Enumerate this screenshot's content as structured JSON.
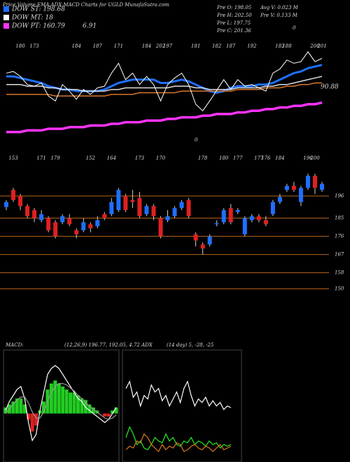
{
  "header": {
    "title": "Price,Volume,EMA,ADX,MACD Charts for UGLD MunafaSutra.com",
    "legend": [
      {
        "label": "DOW ST: 198.68",
        "color": "#1f6fff"
      },
      {
        "label": "DOW MT: 18",
        "color": "#ffffff"
      },
      {
        "label": "DOW PT: 160.79",
        "color": "#ff33ff"
      }
    ],
    "extra": "6.91",
    "info": [
      "Pre O: 198.05",
      "Pre H: 202.50",
      "Pre L: 197.75",
      "Pre C: 201.36",
      "Avg V: 0.023 M",
      "Pre V: 0.133 M"
    ],
    "zero": "0",
    "macd_title": "MACD:",
    "macd_params": "(12,26,9) 196.77, 192.05, 4.72 ADX",
    "adx_params": "(14 day) 5, -28, -25"
  },
  "chart_data": [
    {
      "type": "line",
      "ylim": [
        150,
        212
      ],
      "end_label": "90.88",
      "point_labels": [
        null,
        null,
        "180",
        null,
        "173",
        null,
        null,
        null,
        null,
        null,
        "184",
        null,
        null,
        "187",
        null,
        null,
        "171",
        null,
        null,
        null,
        "184",
        null,
        "202",
        "197",
        null,
        null,
        null,
        "181",
        null,
        null,
        "182",
        null,
        "187",
        null,
        null,
        "192",
        null,
        null,
        null,
        "182",
        "188",
        null,
        null,
        null,
        "200",
        "201"
      ],
      "series": [
        {
          "name": "DOW ST: 198.68",
          "color": "#1f6fff",
          "width": 3,
          "values": [
            191,
            191,
            190,
            189,
            188,
            187,
            185,
            184,
            183,
            183,
            182,
            182,
            182,
            182,
            183,
            185,
            187,
            188,
            189,
            189,
            189,
            189,
            187,
            187,
            188,
            189,
            188,
            186,
            184,
            182,
            181,
            182,
            184,
            185,
            185,
            185,
            186,
            186,
            187,
            189,
            191,
            193,
            194,
            196,
            197,
            198
          ]
        },
        {
          "name": "DOW MT: 18",
          "color": "#dddddd",
          "width": 1.5,
          "values": [
            186,
            186,
            186,
            185,
            185,
            185,
            184,
            184,
            183,
            183,
            183,
            182,
            182,
            182,
            182,
            183,
            183,
            184,
            184,
            184,
            184,
            184,
            184,
            184,
            185,
            185,
            185,
            184,
            184,
            183,
            183,
            183,
            183,
            184,
            184,
            184,
            184,
            185,
            185,
            186,
            186,
            187,
            188,
            189,
            190,
            191
          ]
        },
        {
          "color": "#d9772b",
          "width": 1.5,
          "values": [
            180,
            180,
            180,
            180,
            180,
            180,
            180,
            179,
            179,
            179,
            179,
            179,
            179,
            179,
            179,
            180,
            180,
            180,
            180,
            181,
            181,
            181,
            181,
            181,
            181,
            182,
            182,
            182,
            182,
            182,
            182,
            182,
            182,
            183,
            183,
            183,
            183,
            184,
            184,
            184,
            185,
            185,
            186,
            186,
            187,
            187
          ]
        },
        {
          "name": "DOW PT: 160.79",
          "color": "#ff33ff",
          "width": 3.5,
          "values": [
            157,
            157,
            157,
            158,
            158,
            158,
            159,
            159,
            159,
            160,
            160,
            160,
            161,
            161,
            161,
            162,
            162,
            163,
            163,
            163,
            164,
            164,
            164,
            165,
            165,
            166,
            166,
            166,
            167,
            167,
            168,
            168,
            168,
            169,
            169,
            170,
            170,
            171,
            171,
            172,
            172,
            173,
            173,
            174,
            174,
            175
          ]
        }
      ]
    },
    {
      "type": "candlestick",
      "ylim": [
        144,
        214
      ],
      "yticks": [
        150,
        158,
        167,
        176,
        185,
        196
      ],
      "grid": true,
      "up_color": "#1f6fff",
      "down_color": "#e02020",
      "candle_labels": [
        null,
        "153",
        null,
        null,
        null,
        "171",
        null,
        "179",
        null,
        null,
        null,
        null,
        "152",
        null,
        null,
        "164",
        null,
        null,
        null,
        "173",
        null,
        null,
        "170",
        null,
        null,
        null,
        null,
        null,
        "178",
        null,
        null,
        "180",
        null,
        "177",
        null,
        null,
        "177",
        "176",
        null,
        "184",
        null,
        null,
        null,
        "196",
        "200",
        null
      ],
      "open": [
        190.5,
        199,
        196,
        191,
        189,
        184,
        185,
        183,
        183,
        185,
        179,
        179,
        182,
        181,
        187,
        187,
        189,
        196,
        194,
        195,
        187,
        191,
        185,
        184,
        186,
        190,
        194,
        177,
        172,
        172,
        182,
        183,
        190,
        188,
        177,
        184,
        186,
        184,
        187,
        193,
        199,
        201,
        193,
        200,
        206,
        199
      ],
      "high": [
        194,
        200,
        197,
        192,
        190,
        189,
        186,
        184,
        187,
        187,
        180,
        185,
        183,
        186,
        188,
        195,
        200,
        197,
        199,
        198,
        192,
        192,
        186,
        189,
        191,
        194,
        195,
        178,
        173,
        177,
        184,
        190,
        192,
        190,
        186,
        187,
        187,
        186,
        194,
        197,
        202,
        203,
        201,
        207,
        207,
        203
      ],
      "low": [
        189,
        193,
        189,
        185,
        183,
        183,
        178,
        175,
        182,
        181,
        175,
        178,
        178,
        180,
        184,
        186,
        188,
        188,
        190,
        185,
        186,
        184,
        175,
        183,
        185,
        189,
        185,
        171,
        167,
        171,
        181,
        182,
        182,
        187,
        176,
        183,
        183,
        181,
        186,
        192,
        198,
        198,
        191,
        199,
        197,
        198
      ],
      "close": [
        193,
        194,
        191,
        186,
        185,
        187,
        179,
        176,
        186,
        182,
        177,
        183,
        180,
        184,
        185,
        193,
        199,
        189,
        193,
        186,
        191,
        186,
        176,
        186,
        190,
        193,
        186,
        174,
        170,
        176,
        182.5,
        189,
        183,
        189,
        185,
        186,
        184,
        182,
        193,
        195.5,
        201,
        199,
        200,
        206,
        200,
        202
      ]
    },
    {
      "type": "macd",
      "ylim": [
        -3,
        4
      ],
      "histogram": [
        0.4,
        0.6,
        0.8,
        1.0,
        1.0,
        0.6,
        -0.4,
        -1.2,
        -0.8,
        0.2,
        0.8,
        1.6,
        2.0,
        2.2,
        2.0,
        1.8,
        1.6,
        1.4,
        1.4,
        1.2,
        1.0,
        0.9,
        0.6,
        0.4,
        0.2,
        0.0,
        -0.2,
        -0.2,
        0.2,
        0.4
      ],
      "series": [
        {
          "color": "#ffffff",
          "values": [
            0.2,
            0.8,
            1.2,
            1.6,
            1.8,
            1.0,
            -0.6,
            -1.8,
            -1.4,
            0.2,
            1.4,
            2.6,
            3.0,
            3.2,
            3.0,
            2.6,
            2.2,
            1.8,
            1.4,
            1.0,
            0.8,
            0.4,
            0.2,
            0.0,
            -0.2,
            -0.4,
            -0.6,
            -0.4,
            0.0,
            0.4
          ]
        },
        {
          "color": "#999999",
          "values": [
            0.0,
            0.3,
            0.6,
            0.9,
            1.1,
            1.1,
            0.7,
            0.1,
            -0.3,
            -0.3,
            0.1,
            0.8,
            1.4,
            1.8,
            2.0,
            2.0,
            1.9,
            1.7,
            1.5,
            1.2,
            1.0,
            0.7,
            0.5,
            0.3,
            0.1,
            -0.1,
            -0.3,
            -0.4,
            -0.3,
            -0.1
          ]
        }
      ]
    },
    {
      "type": "adx",
      "ylim": [
        0,
        60
      ],
      "series": [
        {
          "color": "#ffffff",
          "values": [
            40,
            44,
            35,
            38,
            30,
            36,
            34,
            42,
            38,
            40,
            33,
            36,
            30,
            34,
            38,
            32,
            40,
            44,
            36,
            30,
            34,
            32,
            35,
            30,
            33,
            30,
            32,
            28,
            30,
            29
          ]
        },
        {
          "color": "#22ee22",
          "values": [
            12,
            18,
            14,
            8,
            10,
            6,
            5,
            8,
            12,
            10,
            9,
            14,
            10,
            12,
            8,
            7,
            10,
            9,
            12,
            8,
            10,
            9,
            7,
            10,
            8,
            9,
            6,
            8,
            7,
            8
          ]
        },
        {
          "color": "#e07a20",
          "values": [
            5,
            7,
            6,
            10,
            9,
            14,
            12,
            8,
            6,
            4,
            8,
            5,
            7,
            6,
            9,
            8,
            4,
            5,
            7,
            8,
            6,
            5,
            7,
            6,
            4,
            6,
            8,
            5,
            6,
            7
          ]
        }
      ]
    }
  ]
}
